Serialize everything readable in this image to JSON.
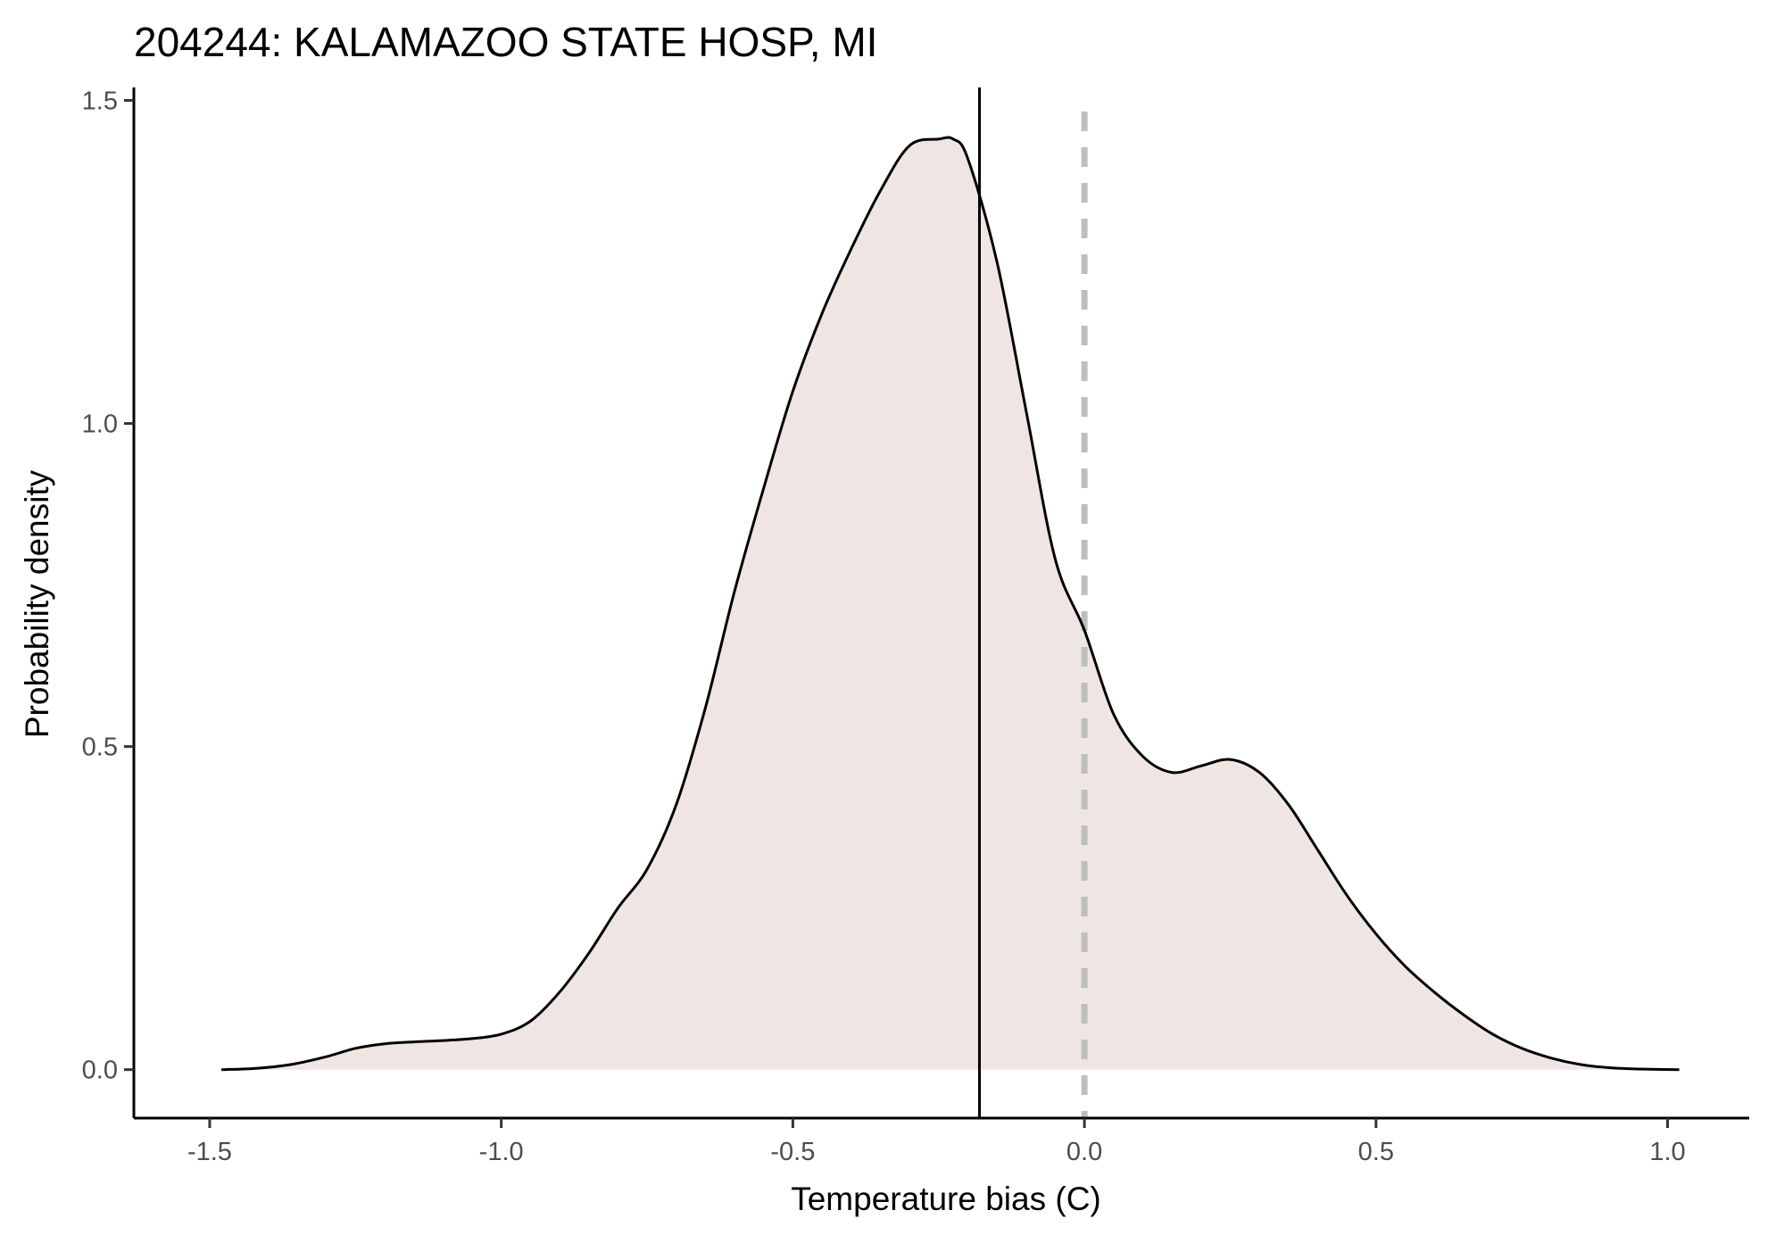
{
  "chart_data": {
    "type": "area",
    "title": "204244: KALAMAZOO STATE HOSP, MI",
    "xlabel": "Temperature bias (C)",
    "ylabel": "Probability density",
    "xlim": [
      -1.63,
      1.14
    ],
    "ylim": [
      -0.075,
      1.52
    ],
    "x_ticks": [
      -1.5,
      -1.0,
      -0.5,
      0.0,
      0.5,
      1.0
    ],
    "x_tick_labels": [
      "-1.5",
      "-1.0",
      "-0.5",
      "0.0",
      "0.5",
      "1.0"
    ],
    "y_ticks": [
      0.0,
      0.5,
      1.0,
      1.5
    ],
    "y_tick_labels": [
      "0.0",
      "0.5",
      "1.0",
      "1.5"
    ],
    "grid": false,
    "legend": "none",
    "fill_color": "#efe6e3",
    "line_color": "#000000",
    "density": {
      "x": [
        -1.48,
        -1.42,
        -1.36,
        -1.3,
        -1.25,
        -1.2,
        -1.15,
        -1.1,
        -1.05,
        -1.0,
        -0.95,
        -0.9,
        -0.85,
        -0.8,
        -0.75,
        -0.7,
        -0.65,
        -0.6,
        -0.55,
        -0.5,
        -0.45,
        -0.4,
        -0.35,
        -0.3,
        -0.25,
        -0.225,
        -0.2,
        -0.15,
        -0.1,
        -0.05,
        0.0,
        0.05,
        0.1,
        0.15,
        0.2,
        0.25,
        0.3,
        0.35,
        0.4,
        0.45,
        0.5,
        0.55,
        0.6,
        0.65,
        0.7,
        0.75,
        0.8,
        0.85,
        0.9,
        0.95,
        1.02
      ],
      "y": [
        0.0,
        0.002,
        0.008,
        0.02,
        0.033,
        0.04,
        0.043,
        0.045,
        0.048,
        0.055,
        0.075,
        0.12,
        0.18,
        0.25,
        0.31,
        0.41,
        0.56,
        0.74,
        0.9,
        1.05,
        1.17,
        1.27,
        1.36,
        1.43,
        1.44,
        1.44,
        1.41,
        1.25,
        1.02,
        0.79,
        0.68,
        0.55,
        0.485,
        0.46,
        0.47,
        0.48,
        0.46,
        0.41,
        0.34,
        0.27,
        0.21,
        0.16,
        0.12,
        0.085,
        0.055,
        0.033,
        0.018,
        0.008,
        0.003,
        0.001,
        0.0
      ]
    },
    "vlines": [
      {
        "x": -0.18,
        "style": "solid",
        "color": "#000000"
      },
      {
        "x": 0.0,
        "style": "dashed",
        "color": "#bebebe"
      }
    ]
  }
}
